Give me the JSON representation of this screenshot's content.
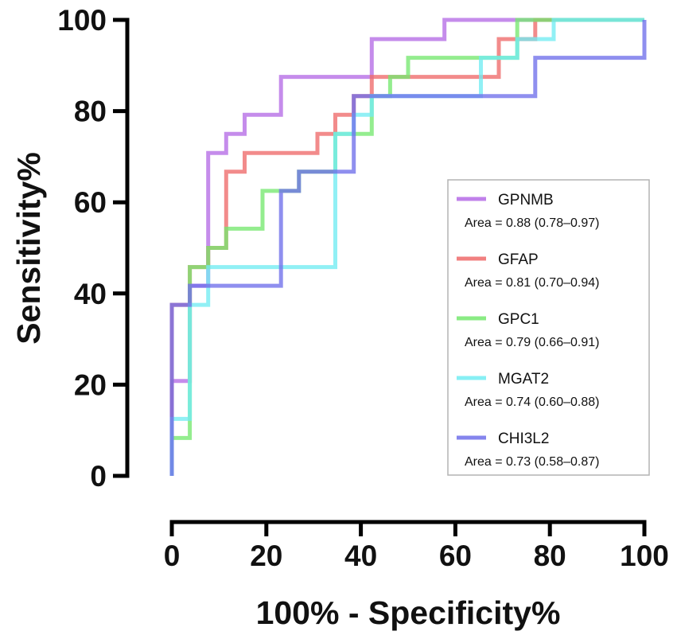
{
  "chart_data": {
    "type": "line",
    "xlabel": "100% - Specificity%",
    "ylabel": "Sensitivity%",
    "xlim": [
      0,
      100
    ],
    "ylim": [
      0,
      100
    ],
    "xticks": [
      "0",
      "20",
      "40",
      "60",
      "80",
      "100"
    ],
    "yticks": [
      "0",
      "20",
      "40",
      "60",
      "80",
      "100"
    ],
    "legend_position": "bottom-right",
    "series": [
      {
        "name": "GPNMB",
        "area_label": "Area = 0.88 (0.78–0.97)",
        "color": "#b56be6",
        "points": [
          [
            0,
            0
          ],
          [
            0,
            20.8
          ],
          [
            3.8,
            20.8
          ],
          [
            3.8,
            41.7
          ],
          [
            7.7,
            41.7
          ],
          [
            7.7,
            70.8
          ],
          [
            11.5,
            70.8
          ],
          [
            11.5,
            75
          ],
          [
            15.4,
            75
          ],
          [
            15.4,
            79.2
          ],
          [
            23.1,
            79.2
          ],
          [
            23.1,
            87.5
          ],
          [
            42.3,
            87.5
          ],
          [
            42.3,
            95.8
          ],
          [
            57.7,
            95.8
          ],
          [
            57.7,
            100
          ],
          [
            100,
            100
          ]
        ]
      },
      {
        "name": "GFAP",
        "area_label": "Area = 0.81 (0.70–0.94)",
        "color": "#ee6a6a",
        "points": [
          [
            0,
            0
          ],
          [
            0,
            37.5
          ],
          [
            3.8,
            37.5
          ],
          [
            3.8,
            45.8
          ],
          [
            7.7,
            45.8
          ],
          [
            7.7,
            50
          ],
          [
            11.5,
            50
          ],
          [
            11.5,
            66.7
          ],
          [
            15.4,
            66.7
          ],
          [
            15.4,
            70.8
          ],
          [
            30.8,
            70.8
          ],
          [
            30.8,
            75
          ],
          [
            34.6,
            75
          ],
          [
            34.6,
            79.2
          ],
          [
            38.5,
            79.2
          ],
          [
            38.5,
            83.3
          ],
          [
            42.3,
            83.3
          ],
          [
            42.3,
            87.5
          ],
          [
            69.2,
            87.5
          ],
          [
            69.2,
            95.8
          ],
          [
            76.9,
            95.8
          ],
          [
            76.9,
            100
          ],
          [
            100,
            100
          ]
        ]
      },
      {
        "name": "GPC1",
        "area_label": "Area = 0.79 (0.66–0.91)",
        "color": "#76e86f",
        "points": [
          [
            0,
            0
          ],
          [
            0,
            8.3
          ],
          [
            3.8,
            8.3
          ],
          [
            3.8,
            45.8
          ],
          [
            7.7,
            45.8
          ],
          [
            7.7,
            50
          ],
          [
            11.5,
            50
          ],
          [
            11.5,
            54.2
          ],
          [
            19.2,
            54.2
          ],
          [
            19.2,
            62.5
          ],
          [
            26.9,
            62.5
          ],
          [
            26.9,
            66.7
          ],
          [
            34.6,
            66.7
          ],
          [
            34.6,
            75
          ],
          [
            42.3,
            75
          ],
          [
            42.3,
            83.3
          ],
          [
            46.2,
            83.3
          ],
          [
            46.2,
            87.5
          ],
          [
            50,
            87.5
          ],
          [
            50,
            91.7
          ],
          [
            73.1,
            91.7
          ],
          [
            73.1,
            100
          ],
          [
            100,
            100
          ]
        ]
      },
      {
        "name": "MGAT2",
        "area_label": "Area = 0.74 (0.60–0.88)",
        "color": "#72ecf2",
        "points": [
          [
            0,
            0
          ],
          [
            0,
            12.5
          ],
          [
            3.8,
            12.5
          ],
          [
            3.8,
            37.5
          ],
          [
            7.7,
            37.5
          ],
          [
            7.7,
            45.8
          ],
          [
            34.6,
            45.8
          ],
          [
            34.6,
            75
          ],
          [
            38.5,
            75
          ],
          [
            38.5,
            79.2
          ],
          [
            42.3,
            79.2
          ],
          [
            42.3,
            83.3
          ],
          [
            65.4,
            83.3
          ],
          [
            65.4,
            91.7
          ],
          [
            73.1,
            91.7
          ],
          [
            73.1,
            95.8
          ],
          [
            80.8,
            95.8
          ],
          [
            80.8,
            100
          ],
          [
            100,
            100
          ]
        ]
      },
      {
        "name": "CHI3L2",
        "area_label": "Area = 0.73 (0.58–0.87)",
        "color": "#7070ea",
        "points": [
          [
            0,
            0
          ],
          [
            0,
            37.5
          ],
          [
            3.8,
            37.5
          ],
          [
            3.8,
            41.7
          ],
          [
            23.1,
            41.7
          ],
          [
            23.1,
            62.5
          ],
          [
            26.9,
            62.5
          ],
          [
            26.9,
            66.7
          ],
          [
            38.5,
            66.7
          ],
          [
            38.5,
            83.3
          ],
          [
            76.9,
            83.3
          ],
          [
            76.9,
            91.7
          ],
          [
            100,
            91.7
          ],
          [
            100,
            100
          ]
        ]
      }
    ]
  }
}
